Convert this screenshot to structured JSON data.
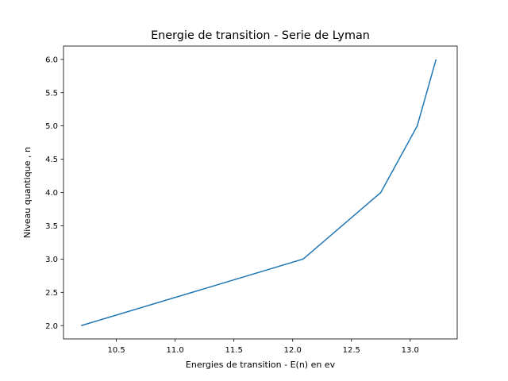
{
  "chart_data": {
    "type": "line",
    "title": "Energie de transition - Serie de Lyman",
    "xlabel": "Energies de transition - E(n) en ev",
    "ylabel": "Niveau quantique ,  n",
    "xlim": [
      10.05,
      13.4
    ],
    "ylim": [
      1.8,
      6.2
    ],
    "xticks": [
      10.5,
      11.0,
      11.5,
      12.0,
      12.5,
      13.0
    ],
    "xtick_labels": [
      "10.5",
      "11.0",
      "11.5",
      "12.0",
      "12.5",
      "13.0"
    ],
    "yticks": [
      2.0,
      2.5,
      3.0,
      3.5,
      4.0,
      4.5,
      5.0,
      5.5,
      6.0
    ],
    "ytick_labels": [
      "2.0",
      "2.5",
      "3.0",
      "3.5",
      "4.0",
      "4.5",
      "5.0",
      "5.5",
      "6.0"
    ],
    "grid": false,
    "series": [
      {
        "color": "#1f77b4",
        "x": [
          10.2,
          12.09,
          12.75,
          13.06,
          13.22
        ],
        "y": [
          2,
          3,
          4,
          5,
          6
        ]
      }
    ]
  }
}
